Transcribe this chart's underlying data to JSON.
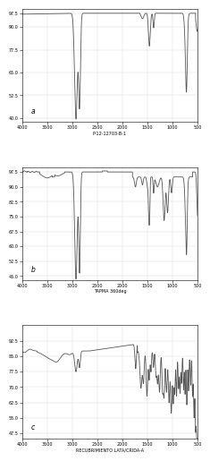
{
  "background_color": "#ffffff",
  "panels": [
    {
      "label": "a",
      "y_min": 38,
      "y_max": 100,
      "yticks": [
        40,
        52.5,
        65,
        77.5,
        90,
        97.5
      ],
      "xlabel": "P-12-12703-B-1"
    },
    {
      "label": "b",
      "y_min": 43,
      "y_max": 100,
      "yticks": [
        45,
        52.5,
        60,
        67.5,
        75,
        82.5,
        90,
        97.5
      ],
      "xlabel": "TAPMA 360deg"
    },
    {
      "label": "c",
      "y_min": 45,
      "y_max": 100,
      "yticks": [
        47.5,
        55,
        62.5,
        70,
        77.5,
        85,
        92.5
      ],
      "xlabel": "RECUBRIMIENTO LATA/CRIDA-A"
    }
  ],
  "xticks": [
    500,
    1000,
    1500,
    2000,
    2500,
    3000,
    3500,
    4000
  ],
  "line_color": "#555555",
  "line_width": 0.6,
  "grid_color": "#cccccc",
  "tick_labelsize": 3.5,
  "axis_labelsize": 3.5
}
